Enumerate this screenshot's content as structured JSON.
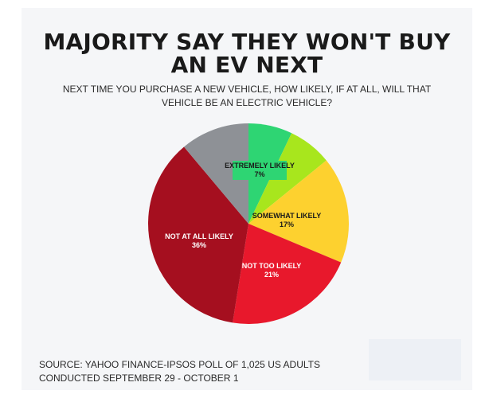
{
  "chart_data": {
    "type": "pie",
    "title": "MAJORITY SAY THEY WON'T BUY AN EV NEXT",
    "subtitle": "NEXT TIME YOU PURCHASE A NEW VEHICLE, HOW LIKELY, IF AT ALL, WILL THAT VEHICLE BE AN ELECTRIC VEHICLE?",
    "slices": [
      {
        "label": "EXTREMELY LIKELY",
        "value": 7,
        "display": "7%",
        "color": "#2ed573",
        "label_color": "#1a1a1a"
      },
      {
        "label": "",
        "value": 7,
        "display": "",
        "color": "#a8e61d",
        "label_color": "#1a1a1a"
      },
      {
        "label": "SOMEWHAT LIKELY",
        "value": 17,
        "display": "17%",
        "color": "#fdd12f",
        "label_color": "#1a1a1a"
      },
      {
        "label": "NOT TOO LIKELY",
        "value": 21,
        "display": "21%",
        "color": "#e8182c",
        "label_color": "#ffffff"
      },
      {
        "label": "NOT AT ALL LIKELY",
        "value": 36,
        "display": "36%",
        "color": "#a50f1f",
        "label_color": "#ffffff"
      },
      {
        "label": "",
        "value": 11,
        "display": "",
        "color": "#8e9196",
        "label_color": "#ffffff"
      }
    ],
    "start": "12 o'clock",
    "direction": "clockwise",
    "source": "SOURCE: YAHOO FINANCE-IPSOS POLL OF 1,025 US ADULTS CONDUCTED SEPTEMBER 29 - OCTOBER 1"
  }
}
